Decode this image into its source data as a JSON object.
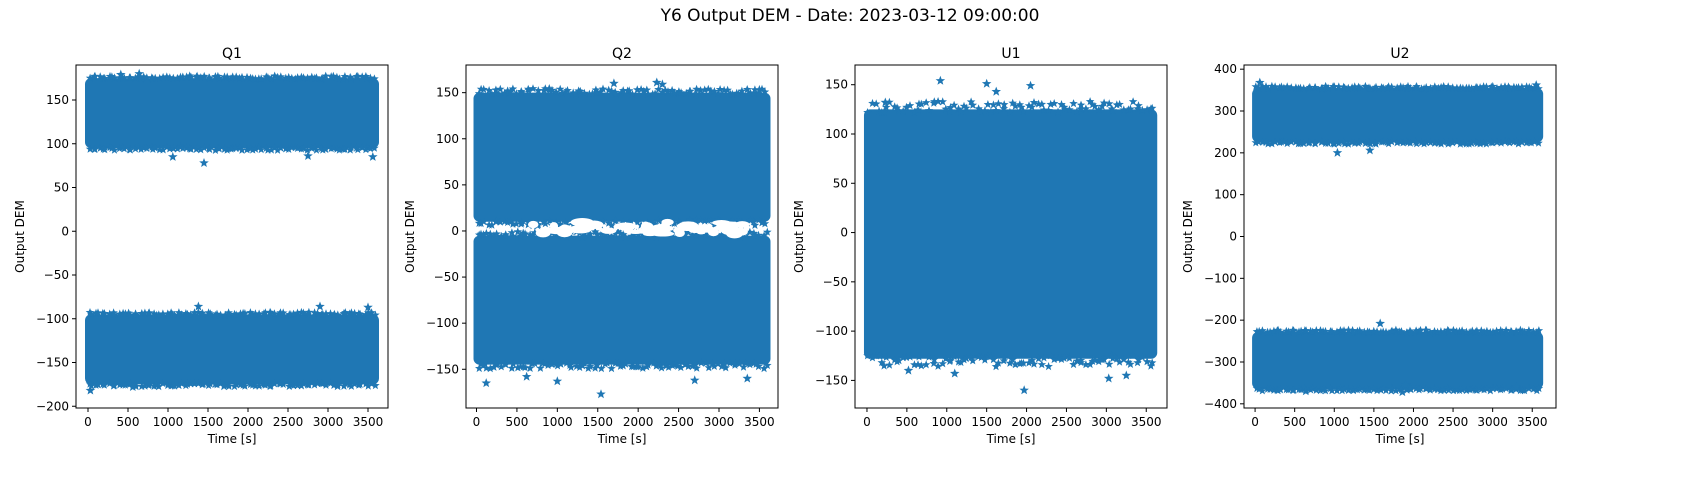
{
  "figure": {
    "suptitle": "Y6 Output DEM - Date: 2023-03-12 09:00:00",
    "marker_color": "#1f77b4",
    "marker": "star"
  },
  "chart_data": [
    {
      "type": "scatter",
      "title": "Q1",
      "xlabel": "Time [s]",
      "ylabel": "Output DEM",
      "xlim": [
        -150,
        3750
      ],
      "ylim": [
        -202,
        190
      ],
      "xticks": [
        0,
        500,
        1000,
        1500,
        2000,
        2500,
        3000,
        3500
      ],
      "yticks": [
        -200,
        -150,
        -100,
        -50,
        0,
        50,
        100,
        150
      ],
      "x_range": [
        0,
        3600
      ],
      "bands": [
        [
          95,
          175
        ],
        [
          -175,
          -95
        ]
      ],
      "outliers": [
        [
          640,
          180
        ],
        [
          410,
          179
        ],
        [
          1450,
          78
        ],
        [
          1060,
          85
        ],
        [
          2750,
          86
        ],
        [
          3560,
          85
        ],
        [
          1380,
          -86
        ],
        [
          2900,
          -86
        ],
        [
          3500,
          -87
        ],
        [
          560,
          -178
        ],
        [
          1700,
          -177
        ],
        [
          30,
          -182
        ],
        [
          3120,
          -177
        ]
      ]
    },
    {
      "type": "scatter",
      "title": "Q2",
      "xlabel": "Time [s]",
      "ylabel": "Output DEM",
      "xlim": [
        -130,
        3730
      ],
      "ylim": [
        -192,
        180
      ],
      "xticks": [
        0,
        500,
        1000,
        1500,
        2000,
        2500,
        3000,
        3500
      ],
      "yticks": [
        -150,
        -100,
        -50,
        0,
        50,
        100,
        150
      ],
      "x_range": [
        0,
        3600
      ],
      "bands": [
        [
          10,
          150
        ],
        [
          -145,
          -5
        ]
      ],
      "outliers": [
        [
          1700,
          160
        ],
        [
          2230,
          161
        ],
        [
          2300,
          159
        ],
        [
          900,
          154
        ],
        [
          3500,
          153
        ],
        [
          120,
          -165
        ],
        [
          1540,
          -177
        ],
        [
          1000,
          -163
        ],
        [
          2700,
          -162
        ],
        [
          3350,
          -160
        ],
        [
          620,
          -158
        ]
      ]
    },
    {
      "type": "scatter",
      "title": "U1",
      "xlabel": "Time [s]",
      "ylabel": "Output DEM",
      "xlim": [
        -150,
        3760
      ],
      "ylim": [
        -178,
        170
      ],
      "xticks": [
        0,
        500,
        1000,
        1500,
        2000,
        2500,
        3000,
        3500
      ],
      "yticks": [
        -150,
        -100,
        -50,
        0,
        50,
        100,
        150
      ],
      "x_range": [
        0,
        3600
      ],
      "bands": [
        [
          -128,
          125
        ]
      ],
      "outliers": [
        [
          920,
          154
        ],
        [
          1500,
          151
        ],
        [
          2050,
          149
        ],
        [
          230,
          132
        ],
        [
          1620,
          143
        ],
        [
          1970,
          -160
        ],
        [
          1100,
          -143
        ],
        [
          3030,
          -148
        ],
        [
          3250,
          -145
        ],
        [
          520,
          -140
        ]
      ]
    },
    {
      "type": "scatter",
      "title": "U2",
      "xlabel": "Time [s]",
      "ylabel": "Output DEM",
      "xlim": [
        -140,
        3800
      ],
      "ylim": [
        -410,
        410
      ],
      "xticks": [
        0,
        500,
        1000,
        1500,
        2000,
        2500,
        3000,
        3500
      ],
      "yticks": [
        -400,
        -300,
        -200,
        -100,
        0,
        100,
        200,
        300,
        400
      ],
      "x_range": [
        0,
        3600
      ],
      "bands": [
        [
          225,
          355
        ],
        [
          -365,
          -228
        ]
      ],
      "outliers": [
        [
          60,
          368
        ],
        [
          3550,
          362
        ],
        [
          1040,
          200
        ],
        [
          1450,
          206
        ],
        [
          1860,
          -372
        ],
        [
          640,
          -370
        ],
        [
          1900,
          -355
        ],
        [
          3300,
          -360
        ],
        [
          1580,
          -208
        ]
      ]
    }
  ]
}
